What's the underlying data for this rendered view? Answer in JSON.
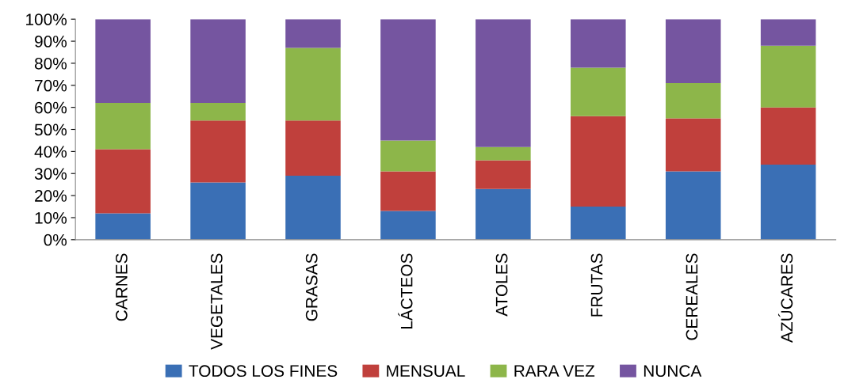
{
  "chart_data": {
    "type": "bar",
    "stacked": true,
    "categories": [
      "CARNES",
      "VEGETALES",
      "GRASAS",
      "LÁCTEOS",
      "ATOLES",
      "FRUTAS",
      "CEREALES",
      "AZÚCARES"
    ],
    "series": [
      {
        "name": "TODOS LOS FINES",
        "color": "#3a6fb5",
        "values": [
          12,
          26,
          29,
          13,
          23,
          15,
          31,
          34
        ]
      },
      {
        "name": "MENSUAL",
        "color": "#c0403c",
        "values": [
          29,
          28,
          25,
          18,
          13,
          41,
          24,
          26
        ]
      },
      {
        "name": "RARA VEZ",
        "color": "#8db64a",
        "values": [
          21,
          8,
          33,
          14,
          6,
          22,
          16,
          28
        ]
      },
      {
        "name": "NUNCA",
        "color": "#7555a0",
        "values": [
          38,
          38,
          13,
          55,
          58,
          22,
          29,
          12
        ]
      }
    ],
    "ylim": [
      0,
      100
    ],
    "yticks": [
      {
        "value": 0,
        "label": "0%"
      },
      {
        "value": 10,
        "label": "10%"
      },
      {
        "value": 20,
        "label": "20%"
      },
      {
        "value": 30,
        "label": "30%"
      },
      {
        "value": 40,
        "label": "40%"
      },
      {
        "value": 50,
        "label": "50%"
      },
      {
        "value": 60,
        "label": "60%"
      },
      {
        "value": 70,
        "label": "70%"
      },
      {
        "value": 80,
        "label": "80%"
      },
      {
        "value": 90,
        "label": "90%"
      },
      {
        "value": 100,
        "label": "100%"
      }
    ],
    "legend": "bottom",
    "grid": false
  }
}
